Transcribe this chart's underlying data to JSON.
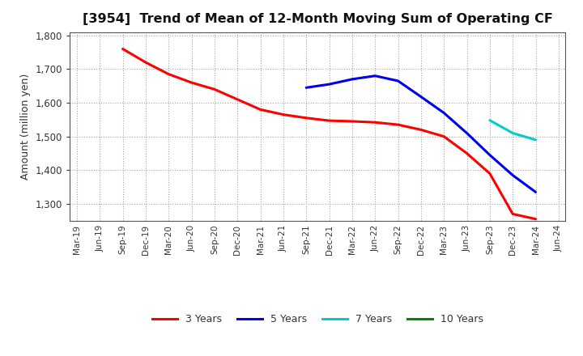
{
  "title": "[3954]  Trend of Mean of 12-Month Moving Sum of Operating CF",
  "ylabel": "Amount (million yen)",
  "background_color": "#ffffff",
  "grid_color": "#999999",
  "ylim": [
    1250,
    1810
  ],
  "yticks": [
    1300,
    1400,
    1500,
    1600,
    1700,
    1800
  ],
  "series": {
    "3 Years": {
      "color": "#ff0000",
      "dates": [
        "Sep-19",
        "Dec-19",
        "Mar-20",
        "Jun-20",
        "Sep-20",
        "Dec-20",
        "Mar-21",
        "Jun-21",
        "Sep-21",
        "Dec-21",
        "Mar-22",
        "Jun-22",
        "Sep-22",
        "Dec-22",
        "Mar-23",
        "Jun-23",
        "Sep-23",
        "Dec-23",
        "Mar-24"
      ],
      "values": [
        1760,
        1720,
        1685,
        1660,
        1640,
        1610,
        1580,
        1565,
        1555,
        1547,
        1545,
        1542,
        1535,
        1520,
        1500,
        1450,
        1390,
        1270,
        1255
      ]
    },
    "5 Years": {
      "color": "#0000ee",
      "dates": [
        "Sep-21",
        "Dec-21",
        "Mar-22",
        "Jun-22",
        "Sep-22",
        "Dec-22",
        "Mar-23",
        "Jun-23",
        "Sep-23",
        "Dec-23",
        "Mar-24"
      ],
      "values": [
        1645,
        1655,
        1670,
        1680,
        1665,
        1618,
        1570,
        1510,
        1445,
        1385,
        1335
      ]
    },
    "7 Years": {
      "color": "#00cccc",
      "dates": [
        "Sep-23",
        "Dec-23",
        "Mar-24"
      ],
      "values": [
        1548,
        1510,
        1490
      ]
    },
    "10 Years": {
      "color": "#008800",
      "dates": [],
      "values": []
    }
  },
  "xtick_labels": [
    "Mar-19",
    "Jun-19",
    "Sep-19",
    "Dec-19",
    "Mar-20",
    "Jun-20",
    "Sep-20",
    "Dec-20",
    "Mar-21",
    "Jun-21",
    "Sep-21",
    "Dec-21",
    "Mar-22",
    "Jun-22",
    "Sep-22",
    "Dec-22",
    "Mar-23",
    "Jun-23",
    "Sep-23",
    "Dec-23",
    "Mar-24",
    "Jun-24"
  ],
  "legend": {
    "entries": [
      "3 Years",
      "5 Years",
      "7 Years",
      "10 Years"
    ],
    "colors": [
      "#ff0000",
      "#0000ee",
      "#00cccc",
      "#008800"
    ]
  }
}
